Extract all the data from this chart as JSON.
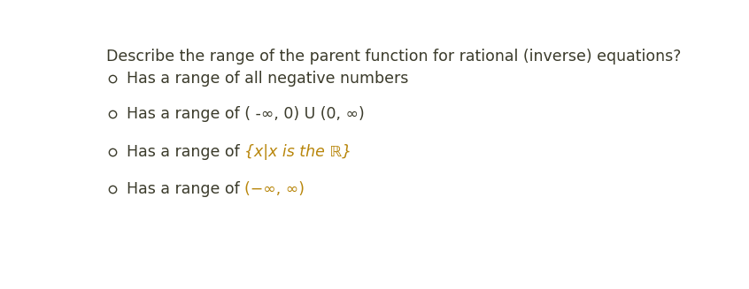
{
  "background_color": "#ffffff",
  "title": "Describe the range of the parent function for rational (inverse) equations?",
  "title_color": "#3a3a2a",
  "title_fontsize": 12.5,
  "options": [
    {
      "plain_text": "Has a range of all negative numbers",
      "plain_color": "#3a3a2a",
      "math_text": null,
      "math_color": null,
      "math_italic": false
    },
    {
      "plain_text": "Has a range of ( -∞, 0) U (0, ∞)",
      "plain_color": "#3a3a2a",
      "math_text": null,
      "math_color": null,
      "math_italic": false
    },
    {
      "plain_text": "Has a range of ",
      "plain_color": "#3a3a2a",
      "math_text": "{x|x is the ℝ}",
      "math_color": "#b8860b",
      "math_italic": true
    },
    {
      "plain_text": "Has a range of ",
      "plain_color": "#3a3a2a",
      "math_text": "(−∞, ∞)",
      "math_color": "#b8860b",
      "math_italic": false
    }
  ],
  "font_size": 12.5,
  "circle_color": "#3a3a2a",
  "circle_lw": 1.0
}
